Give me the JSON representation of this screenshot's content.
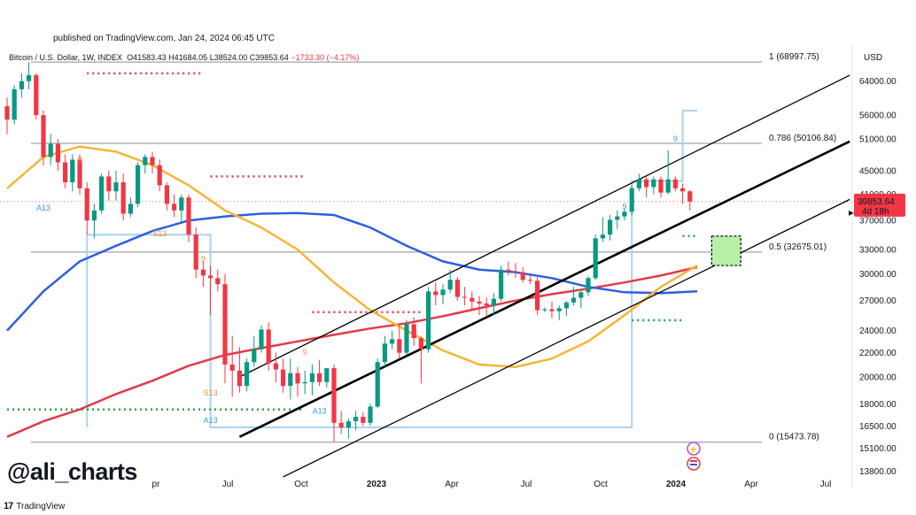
{
  "header": {
    "published": "published on TradingView.com, Jan 24, 2024 06:45 UTC",
    "symbol": "Bitcoin / U.S. Dollar, 1W, INDEX",
    "open": "O41583.43",
    "high": "H41684.05",
    "low": "L38524.00",
    "close": "C39853.64",
    "change": "−1733.30 (−4.17%)"
  },
  "watermark": "@ali_charts",
  "brand": {
    "mark": "17",
    "name": "TradingView"
  },
  "colors": {
    "bull": "#089981",
    "bear": "#f23645",
    "ma_yellow": "#f5b537",
    "ma_blue": "#2f5fe0",
    "ma_red": "#e23a48",
    "step_line": "#a9d3f0",
    "dots_red": "#f23645",
    "dots_green": "#22a83a",
    "target_box": "#b8f0a8"
  },
  "chart_data": {
    "type": "candlestick",
    "title": "Bitcoin / U.S. Dollar, 1W, INDEX",
    "y_scale": "log",
    "ylim": [
      12900,
      74000
    ],
    "y_axis_label": "USD",
    "y_ticks": [
      "64000.00",
      "56000.00",
      "51000.00",
      "45000.00",
      "41000.00",
      "37000.00",
      "33000.00",
      "30000.00",
      "27000.00",
      "24000.00",
      "22000.00",
      "20000.00",
      "18000.00",
      "16500.00",
      "15100.00",
      "13800.00"
    ],
    "x_ticks": [
      "pr",
      "Jul",
      "Oct",
      "2023",
      "Apr",
      "Jul",
      "Oct",
      "2024",
      "Apr",
      "Jul"
    ],
    "current_price": {
      "value": 39853.64,
      "label": "39853.64",
      "countdown": "4d 18h"
    },
    "fib_levels": [
      {
        "ratio": "1",
        "value": 68997.75,
        "label": "1 (68997.75)"
      },
      {
        "ratio": "0.786",
        "value": 50106.84,
        "label": "0.786 (50106.84)"
      },
      {
        "ratio": "0.5",
        "value": 32675.01,
        "label": "0.5 (32675.01)"
      },
      {
        "ratio": "0",
        "value": 15473.78,
        "label": "0 (15473.78)"
      }
    ],
    "td_labels": [
      {
        "text": "A13",
        "t": 5,
        "price": 38500,
        "color": "blue"
      },
      {
        "text": "9",
        "t": 10,
        "price": 46500,
        "color": "orange"
      },
      {
        "text": "S13",
        "t": 21,
        "price": 34800,
        "color": "orange"
      },
      {
        "text": "9",
        "t": 27,
        "price": 31500,
        "color": "orange"
      },
      {
        "text": "S13",
        "t": 28,
        "price": 18600,
        "color": "orange"
      },
      {
        "text": "A13",
        "t": 28,
        "price": 16700,
        "color": "blue"
      },
      {
        "text": "9",
        "t": 41,
        "price": 21800,
        "color": "orange"
      },
      {
        "text": "A13",
        "t": 43,
        "price": 17300,
        "color": "blue"
      },
      {
        "text": "9",
        "t": 85,
        "price": 38700,
        "color": "blue"
      },
      {
        "text": "9",
        "t": 92,
        "price": 50500,
        "color": "blue"
      }
    ],
    "sma_50": [
      [
        0,
        42000
      ],
      [
        5,
        47500
      ],
      [
        10,
        49500
      ],
      [
        15,
        48500
      ],
      [
        20,
        46000
      ],
      [
        25,
        42500
      ],
      [
        30,
        38500
      ],
      [
        35,
        36000
      ],
      [
        40,
        33000
      ],
      [
        45,
        29000
      ],
      [
        50,
        26000
      ],
      [
        55,
        24000
      ],
      [
        60,
        22200
      ],
      [
        65,
        21000
      ],
      [
        70,
        20800
      ],
      [
        75,
        21500
      ],
      [
        80,
        23000
      ],
      [
        85,
        25500
      ],
      [
        90,
        28500
      ],
      [
        95,
        31000
      ]
    ],
    "sma_100": [
      [
        0,
        24000
      ],
      [
        5,
        28000
      ],
      [
        10,
        31500
      ],
      [
        15,
        33500
      ],
      [
        20,
        35500
      ],
      [
        25,
        37000
      ],
      [
        30,
        37600
      ],
      [
        35,
        38000
      ],
      [
        40,
        38100
      ],
      [
        45,
        37800
      ],
      [
        50,
        36000
      ],
      [
        55,
        33500
      ],
      [
        60,
        31500
      ],
      [
        65,
        30500
      ],
      [
        70,
        30200
      ],
      [
        75,
        29500
      ],
      [
        80,
        28500
      ],
      [
        85,
        27900
      ],
      [
        90,
        27800
      ],
      [
        95,
        28000
      ]
    ],
    "sma_200": [
      [
        0,
        15800
      ],
      [
        5,
        16800
      ],
      [
        10,
        17600
      ],
      [
        15,
        18700
      ],
      [
        20,
        19700
      ],
      [
        25,
        20900
      ],
      [
        30,
        21800
      ],
      [
        35,
        22400
      ],
      [
        40,
        23000
      ],
      [
        45,
        23600
      ],
      [
        50,
        24200
      ],
      [
        55,
        24700
      ],
      [
        60,
        25400
      ],
      [
        65,
        26200
      ],
      [
        70,
        27000
      ],
      [
        75,
        27700
      ],
      [
        80,
        28300
      ],
      [
        85,
        29000
      ],
      [
        90,
        29800
      ],
      [
        95,
        30800
      ]
    ],
    "td_step_line": [
      [
        11,
        16400
      ],
      [
        11,
        35000
      ],
      [
        28,
        35000
      ],
      [
        28,
        16400
      ],
      [
        86,
        16400
      ],
      [
        86,
        43200
      ],
      [
        93,
        43200
      ],
      [
        93,
        57000
      ],
      [
        95,
        57000
      ]
    ],
    "resistance_dots": [
      {
        "t0": 11,
        "t1": 27,
        "price": 66000
      },
      {
        "t0": 28,
        "t1": 41,
        "price": 44000
      },
      {
        "t0": 42,
        "t1": 57,
        "price": 25800
      }
    ],
    "support_dots": [
      {
        "t0": 0,
        "t1": 41,
        "price": 17600
      },
      {
        "t0": 86,
        "t1": 93,
        "price": 25000
      },
      {
        "t0": 93,
        "t1": 95,
        "price": 34800
      }
    ],
    "channel": [
      {
        "t0": 32,
        "p0": 20000,
        "t1": 116,
        "p1": 65500
      },
      {
        "t0": 32,
        "p0": 15800,
        "t1": 116,
        "p1": 50500
      },
      {
        "t0": 38,
        "p0": 13500,
        "t1": 116,
        "p1": 40200
      }
    ],
    "target_zone": {
      "t0": 97,
      "t1": 101,
      "p0": 31000,
      "p1": 34800
    },
    "candles": [
      [
        58000,
        60000,
        52000,
        55000
      ],
      [
        55000,
        63000,
        54000,
        62000
      ],
      [
        62000,
        66000,
        60000,
        64000
      ],
      [
        64000,
        69000,
        62000,
        65500
      ],
      [
        65500,
        66000,
        55000,
        56000
      ],
      [
        56000,
        57000,
        46000,
        47500
      ],
      [
        47500,
        52000,
        46000,
        50000
      ],
      [
        50000,
        51000,
        45000,
        46500
      ],
      [
        46500,
        48000,
        42000,
        43000
      ],
      [
        43000,
        48000,
        41500,
        47000
      ],
      [
        47000,
        48000,
        41000,
        42000
      ],
      [
        42000,
        43000,
        35000,
        37000
      ],
      [
        37000,
        39500,
        34500,
        38500
      ],
      [
        38500,
        44500,
        38000,
        44000
      ],
      [
        44000,
        45000,
        40000,
        41500
      ],
      [
        41500,
        45000,
        40000,
        43000
      ],
      [
        43000,
        44500,
        37000,
        38000
      ],
      [
        38000,
        40500,
        37500,
        39500
      ],
      [
        39500,
        46500,
        39000,
        46000
      ],
      [
        46000,
        48000,
        44500,
        47500
      ],
      [
        47500,
        48500,
        44500,
        46000
      ],
      [
        46000,
        47000,
        41500,
        42500
      ],
      [
        42500,
        43000,
        38500,
        39500
      ],
      [
        39500,
        41000,
        37500,
        38500
      ],
      [
        38500,
        41000,
        36500,
        40500
      ],
      [
        40500,
        41000,
        34000,
        35000
      ],
      [
        35000,
        36000,
        29500,
        30500
      ],
      [
        30500,
        31500,
        28500,
        29800
      ],
      [
        29800,
        31000,
        25500,
        29500
      ],
      [
        29500,
        30500,
        28000,
        28800
      ],
      [
        28800,
        30000,
        19500,
        21000
      ],
      [
        21000,
        23500,
        18500,
        20500
      ],
      [
        20500,
        22500,
        18800,
        19300
      ],
      [
        19300,
        21500,
        18900,
        21200
      ],
      [
        21200,
        23500,
        20800,
        22300
      ],
      [
        22300,
        24500,
        22000,
        24100
      ],
      [
        24100,
        24800,
        20500,
        21100
      ],
      [
        21100,
        22000,
        19600,
        20600
      ],
      [
        20600,
        21500,
        18800,
        19300
      ],
      [
        19300,
        21500,
        18300,
        20300
      ],
      [
        20300,
        20800,
        18500,
        19500
      ],
      [
        19500,
        20500,
        18700,
        19600
      ],
      [
        19600,
        21000,
        18600,
        20300
      ],
      [
        20300,
        21400,
        19300,
        19600
      ],
      [
        19600,
        20600,
        19200,
        20700
      ],
      [
        20700,
        21000,
        15500,
        16700
      ],
      [
        16700,
        17500,
        16000,
        16400
      ],
      [
        16400,
        17000,
        15700,
        16800
      ],
      [
        16800,
        17500,
        16200,
        17100
      ],
      [
        17100,
        17400,
        16500,
        16700
      ],
      [
        16700,
        18000,
        16500,
        17800
      ],
      [
        17800,
        21500,
        17700,
        21200
      ],
      [
        21200,
        23500,
        20800,
        22800
      ],
      [
        22800,
        24000,
        22300,
        23200
      ],
      [
        23200,
        24500,
        21500,
        22000
      ],
      [
        22000,
        25000,
        21800,
        24600
      ],
      [
        24600,
        25300,
        22600,
        23300
      ],
      [
        23300,
        23500,
        19500,
        22300
      ],
      [
        22300,
        28500,
        22000,
        28000
      ],
      [
        28000,
        29000,
        26500,
        27600
      ],
      [
        27600,
        28800,
        26600,
        28200
      ],
      [
        28200,
        30500,
        27800,
        29300
      ],
      [
        29300,
        29600,
        27000,
        27400
      ],
      [
        27400,
        28500,
        26500,
        27300
      ],
      [
        27300,
        28000,
        26000,
        26900
      ],
      [
        26900,
        27500,
        25500,
        26700
      ],
      [
        26700,
        27300,
        25300,
        26500
      ],
      [
        26500,
        27800,
        25500,
        27200
      ],
      [
        27200,
        31000,
        26900,
        30500
      ],
      [
        30500,
        31500,
        29800,
        30300
      ],
      [
        30300,
        31300,
        29500,
        30200
      ],
      [
        30200,
        30800,
        29000,
        29300
      ],
      [
        29300,
        29800,
        28800,
        29200
      ],
      [
        29200,
        29600,
        25500,
        26000
      ],
      [
        26000,
        26300,
        25800,
        26100
      ],
      [
        26100,
        26900,
        25200,
        25900
      ],
      [
        25900,
        26500,
        25000,
        26200
      ],
      [
        26200,
        27000,
        25400,
        26800
      ],
      [
        26800,
        28500,
        26500,
        27300
      ],
      [
        27300,
        28000,
        26200,
        27900
      ],
      [
        27900,
        29700,
        27500,
        29500
      ],
      [
        29500,
        35000,
        29300,
        34500
      ],
      [
        34500,
        37500,
        34000,
        35000
      ],
      [
        35000,
        37800,
        34200,
        37100
      ],
      [
        37100,
        38500,
        35800,
        37600
      ],
      [
        37600,
        38800,
        37000,
        38300
      ],
      [
        38300,
        42500,
        37800,
        42000
      ],
      [
        42000,
        44500,
        41500,
        43500
      ],
      [
        43500,
        44000,
        40500,
        42200
      ],
      [
        42200,
        44000,
        41000,
        43500
      ],
      [
        43500,
        44000,
        40500,
        41300
      ],
      [
        41300,
        48800,
        41000,
        43500
      ],
      [
        43500,
        44000,
        41500,
        42000
      ],
      [
        42000,
        42800,
        39500,
        41500
      ],
      [
        41500,
        41700,
        38500,
        39850
      ]
    ]
  }
}
